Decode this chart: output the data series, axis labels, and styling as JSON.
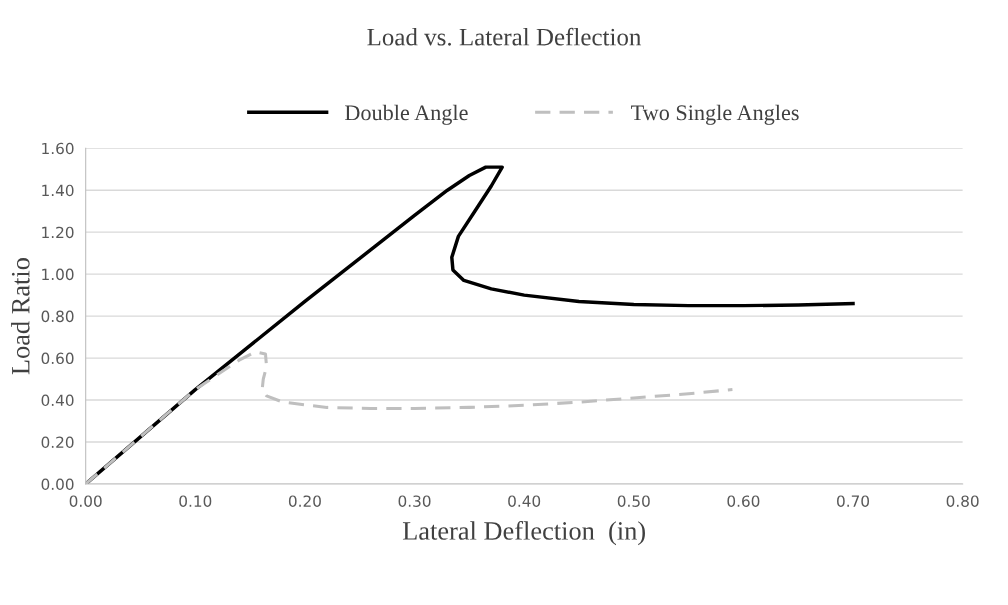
{
  "chart_data": {
    "type": "line",
    "title": "Load vs. Lateral Deflection",
    "xlabel": "Lateral Deflection  (in)",
    "ylabel": "Load Ratio",
    "xlim": [
      0,
      0.8
    ],
    "xticks": [
      {
        "value": 0,
        "label": "0.00"
      },
      {
        "value": 0.1,
        "label": "0.10"
      },
      {
        "value": 0.2,
        "label": "0.20"
      },
      {
        "value": 0.3,
        "label": "0.30"
      },
      {
        "value": 0.4,
        "label": "0.40"
      },
      {
        "value": 0.5,
        "label": "0.50"
      },
      {
        "value": 0.6,
        "label": "0.60"
      },
      {
        "value": 0.7,
        "label": "0.70"
      },
      {
        "value": 0.8,
        "label": "0.80"
      }
    ],
    "ylim": [
      0,
      1.6
    ],
    "yticks": [
      {
        "value": 0,
        "label": "0.00"
      },
      {
        "value": 0.2,
        "label": "0.20"
      },
      {
        "value": 0.4,
        "label": "0.40"
      },
      {
        "value": 0.6,
        "label": "0.60"
      },
      {
        "value": 0.8,
        "label": "0.80"
      },
      {
        "value": 1.0,
        "label": "1.00"
      },
      {
        "value": 1.2,
        "label": "1.20"
      },
      {
        "value": 1.4,
        "label": "1.40"
      },
      {
        "value": 1.6,
        "label": "1.60"
      }
    ],
    "grid": "y",
    "legend": "top",
    "marker": "none",
    "series": [
      {
        "name": "Double Angle",
        "color": "#000000",
        "line_style": "solid",
        "x": [
          0,
          0.1,
          0.2,
          0.3,
          0.33,
          0.35,
          0.365,
          0.38,
          0.37,
          0.355,
          0.34,
          0.334,
          0.335,
          0.345,
          0.37,
          0.4,
          0.45,
          0.5,
          0.55,
          0.6,
          0.65,
          0.7
        ],
        "values": [
          0,
          0.45,
          0.87,
          1.28,
          1.4,
          1.47,
          1.51,
          1.51,
          1.42,
          1.3,
          1.18,
          1.08,
          1.02,
          0.97,
          0.93,
          0.9,
          0.87,
          0.855,
          0.85,
          0.85,
          0.853,
          0.86
        ]
      },
      {
        "name": "Two Single Angles",
        "color": "#bfbfbf",
        "line_style": "dashed",
        "x": [
          0,
          0.1,
          0.14,
          0.155,
          0.164,
          0.165,
          0.162,
          0.161,
          0.165,
          0.18,
          0.22,
          0.26,
          0.3,
          0.35,
          0.4,
          0.45,
          0.5,
          0.55,
          0.59
        ],
        "values": [
          0,
          0.45,
          0.59,
          0.63,
          0.62,
          0.56,
          0.5,
          0.45,
          0.42,
          0.39,
          0.365,
          0.36,
          0.36,
          0.365,
          0.375,
          0.39,
          0.41,
          0.43,
          0.45
        ]
      }
    ]
  }
}
